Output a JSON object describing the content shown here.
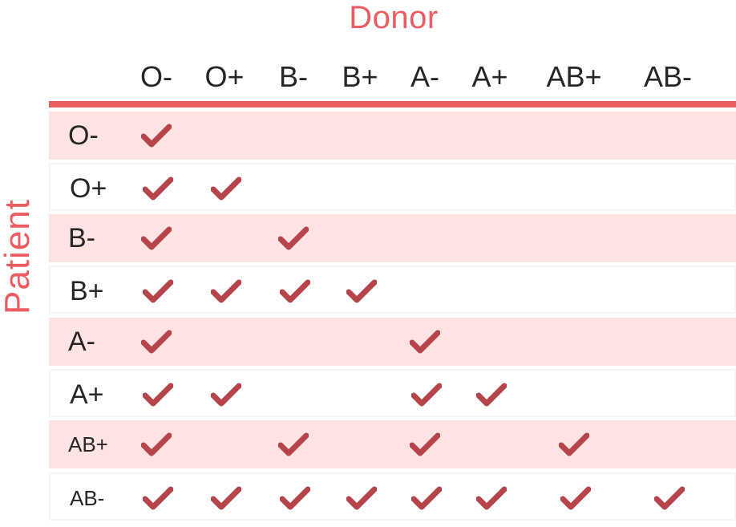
{
  "donor_label": "Donor",
  "patient_label": "Patient",
  "columns": [
    "O-",
    "O+",
    "B-",
    "B+",
    "A-",
    "A+",
    "AB+",
    "AB-"
  ],
  "rows": [
    {
      "label": "O-",
      "compatible": [
        "O-"
      ]
    },
    {
      "label": "O+",
      "compatible": [
        "O-",
        "O+"
      ]
    },
    {
      "label": "B-",
      "compatible": [
        "O-",
        "B-"
      ]
    },
    {
      "label": "B+",
      "compatible": [
        "O-",
        "O+",
        "B-",
        "B+"
      ]
    },
    {
      "label": "A-",
      "compatible": [
        "O-",
        "A-"
      ]
    },
    {
      "label": "A+",
      "compatible": [
        "O-",
        "O+",
        "A-",
        "A+"
      ]
    },
    {
      "label": "AB+",
      "compatible": [
        "O-",
        "B-",
        "A-",
        "AB+"
      ]
    },
    {
      "label": "AB-",
      "compatible": [
        "O-",
        "O+",
        "B-",
        "B+",
        "A-",
        "A+",
        "AB+",
        "AB-"
      ]
    }
  ],
  "colors": {
    "accent": "#ea5d63",
    "check": "#b5454b",
    "row_shade": "#ffe3e3",
    "text": "#262626"
  },
  "icon": "check-icon"
}
